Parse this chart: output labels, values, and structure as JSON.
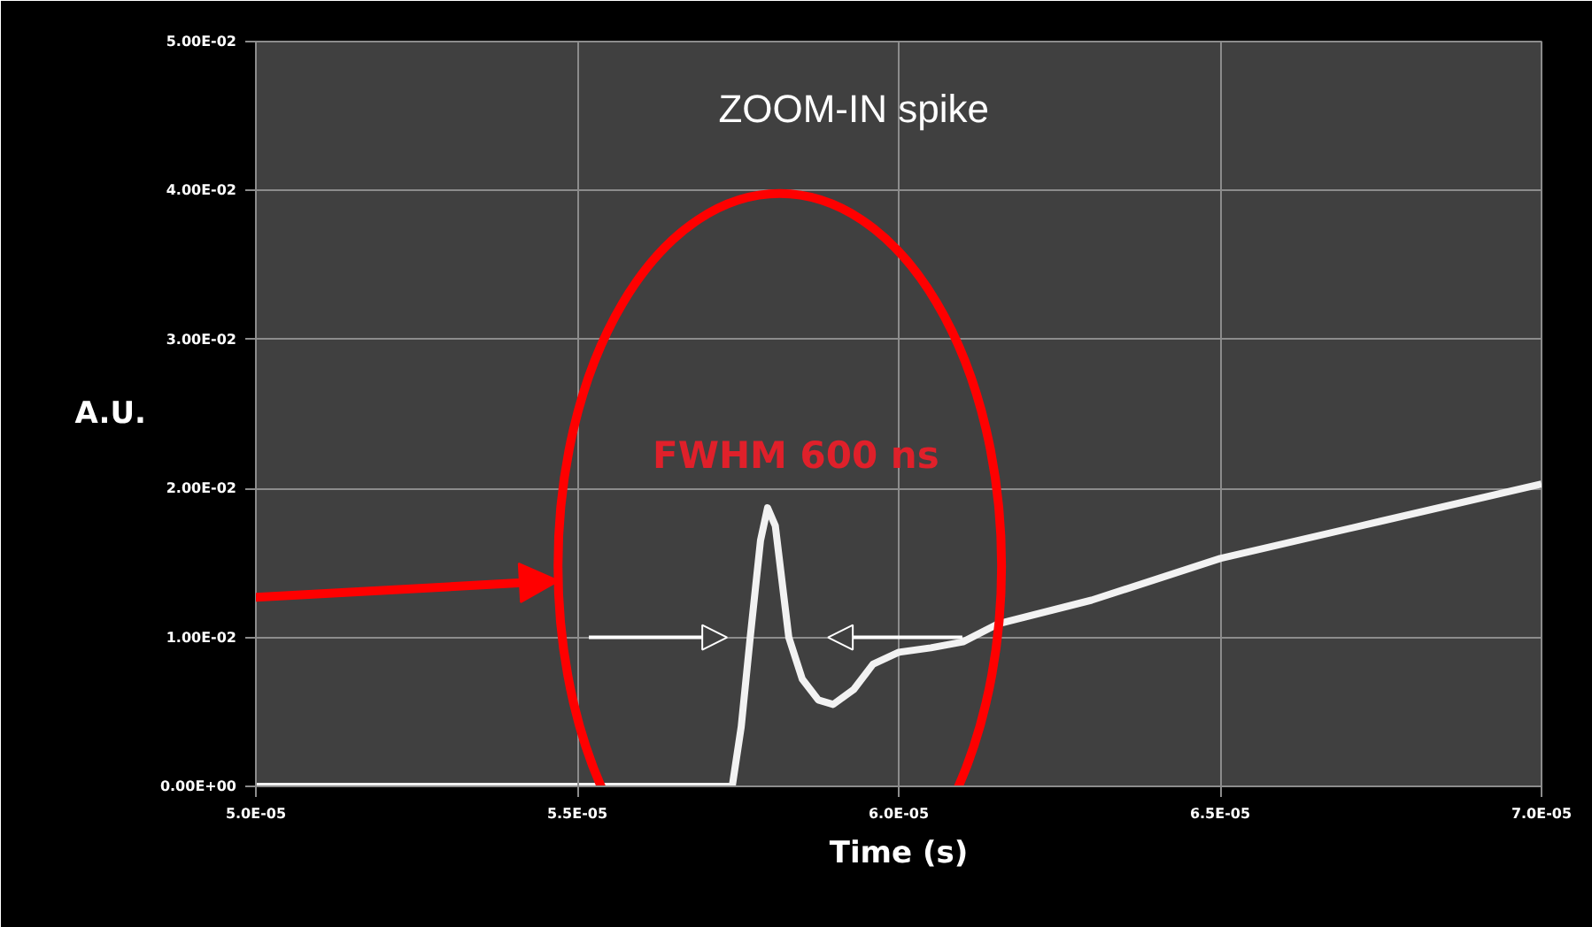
{
  "chart_data": {
    "type": "line",
    "xlabel": "Time (s)",
    "ylabel": "A.U.",
    "annotations": [
      "ZOOM-IN spike",
      "FWHM 600 ns"
    ],
    "x": [
      5e-05,
      5.5e-05,
      5.7e-05,
      5.741e-05,
      5.755e-05,
      5.769e-05,
      5.785e-05,
      5.796e-05,
      5.808e-05,
      5.829e-05,
      5.85e-05,
      5.875e-05,
      5.898e-05,
      5.93e-05,
      5.96e-05,
      6e-05,
      6.05e-05,
      6.1e-05,
      6.154e-05,
      6.3e-05,
      6.5e-05,
      6.75e-05,
      7e-05
    ],
    "series": [
      {
        "color": "#f2f2f2",
        "values": [
          0.0,
          0.0,
          0.0,
          0.0,
          0.004,
          0.01,
          0.0165,
          0.0187,
          0.0175,
          0.01,
          0.0072,
          0.0058,
          0.0055,
          0.0065,
          0.0082,
          0.009,
          0.0093,
          0.0097,
          0.0109,
          0.0125,
          0.0153,
          0.0178,
          0.0203
        ]
      }
    ],
    "xlim": [
      5e-05,
      7e-05
    ],
    "xticks": [
      {
        "value": 5e-05,
        "label": "5.0E-05"
      },
      {
        "value": 5.5e-05,
        "label": "5.5E-05"
      },
      {
        "value": 6e-05,
        "label": "6.0E-05"
      },
      {
        "value": 6.5e-05,
        "label": "6.5E-05"
      },
      {
        "value": 7e-05,
        "label": "7.0E-05"
      }
    ],
    "ylim": [
      0,
      0.05
    ],
    "yticks": [
      {
        "value": 0,
        "label": "0.00E+00"
      },
      {
        "value": 0.01,
        "label": "1.00E-02"
      },
      {
        "value": 0.02,
        "label": "2.00E-02"
      },
      {
        "value": 0.03,
        "label": "3.00E-02"
      },
      {
        "value": 0.04,
        "label": "4.00E-02"
      },
      {
        "value": 0.05,
        "label": "5.00E-02"
      }
    ],
    "grid": true,
    "marker": "none",
    "line_style": "solid"
  }
}
